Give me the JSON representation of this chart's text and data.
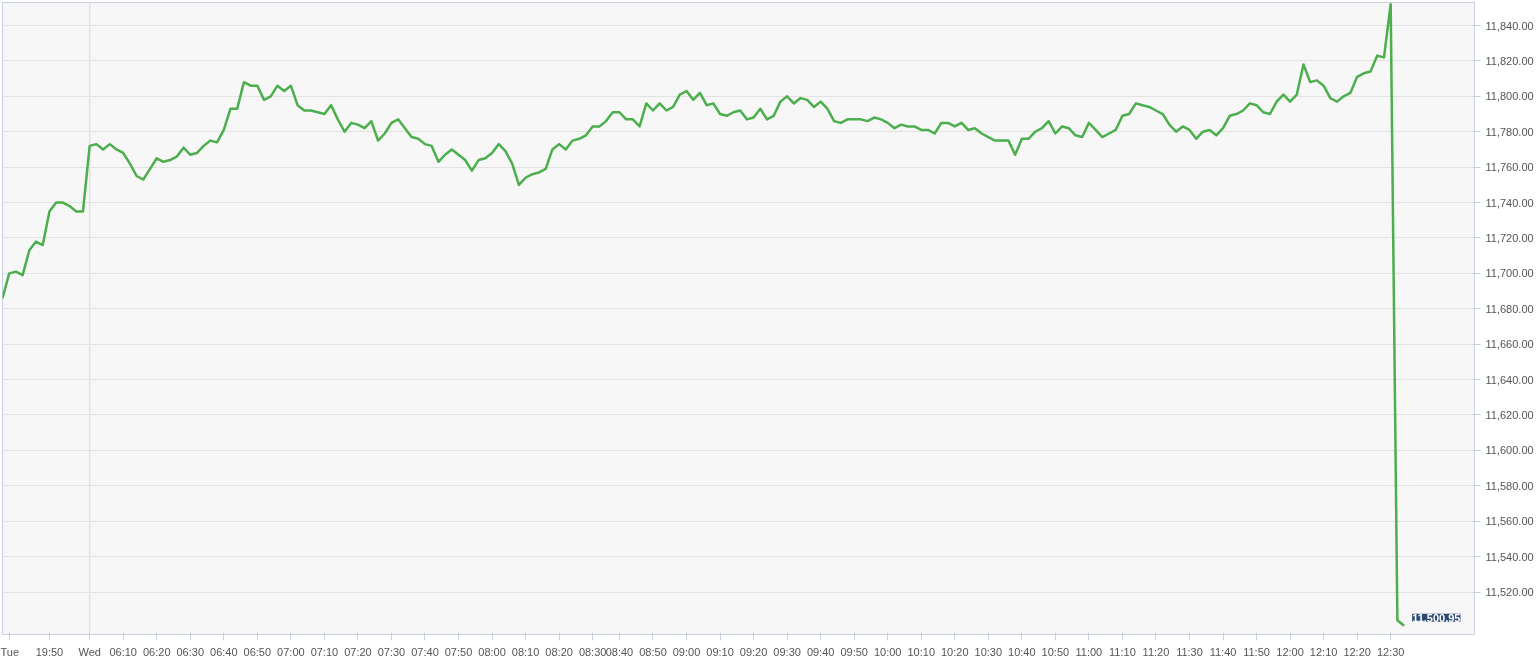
{
  "chart_data": {
    "type": "line",
    "categories": [
      null,
      "Tue",
      null,
      null,
      null,
      null,
      null,
      "19:50",
      null,
      null,
      null,
      null,
      null,
      "Wed",
      null,
      null,
      null,
      null,
      "06:10",
      null,
      null,
      null,
      null,
      "06:20",
      null,
      null,
      null,
      null,
      "06:30",
      null,
      null,
      null,
      null,
      "06:40",
      null,
      null,
      null,
      null,
      "06:50",
      null,
      null,
      null,
      null,
      "07:00",
      null,
      null,
      null,
      null,
      "07:10",
      null,
      null,
      null,
      null,
      "07:20",
      null,
      null,
      null,
      null,
      "07:30",
      null,
      null,
      null,
      null,
      "07:40",
      null,
      null,
      null,
      null,
      "07:50",
      null,
      null,
      null,
      null,
      "08:00",
      null,
      null,
      null,
      null,
      "08:10",
      null,
      null,
      null,
      null,
      "08:20",
      null,
      null,
      null,
      null,
      "08:30",
      null,
      null,
      null,
      "08:40",
      null,
      null,
      null,
      null,
      "08:50",
      null,
      null,
      null,
      null,
      "09:00",
      null,
      null,
      null,
      null,
      "09:10",
      null,
      null,
      null,
      null,
      "09:20",
      null,
      null,
      null,
      null,
      "09:30",
      null,
      null,
      null,
      null,
      "09:40",
      null,
      null,
      null,
      null,
      "09:50",
      null,
      null,
      null,
      null,
      "10:00",
      null,
      null,
      null,
      null,
      "10:10",
      null,
      null,
      null,
      null,
      "10:20",
      null,
      null,
      null,
      null,
      "10:30",
      null,
      null,
      null,
      null,
      "10:40",
      null,
      null,
      null,
      null,
      "10:50",
      null,
      null,
      null,
      null,
      "11:00",
      null,
      null,
      null,
      null,
      "11:10",
      null,
      null,
      null,
      null,
      "11:20",
      null,
      null,
      null,
      null,
      "11:30",
      null,
      null,
      null,
      null,
      "11:40",
      null,
      null,
      null,
      null,
      "11:50",
      null,
      null,
      null,
      null,
      "12:00",
      null,
      null,
      null,
      null,
      "12:10",
      null,
      null,
      null,
      null,
      "12:20",
      null,
      null,
      null,
      null,
      "12:30",
      null,
      null
    ],
    "series": [
      {
        "color": "#4cae4c",
        "values": [
          11686,
          11700,
          11701,
          11699,
          11713,
          11718,
          11716,
          11735,
          11740,
          11740,
          11738,
          11735,
          11735,
          11772,
          11773,
          11770,
          11773,
          11770,
          11768,
          11762,
          11755,
          11753,
          11759,
          11765,
          11763,
          11764,
          11766,
          11771,
          11767,
          11768,
          11772,
          11775,
          11774,
          11781,
          11793,
          11793,
          11808,
          11806,
          11806,
          11798,
          11800,
          11806,
          11803,
          11806,
          11795,
          11792,
          11792,
          11791,
          11790,
          11795,
          11787,
          11780,
          11785,
          11784,
          11782,
          11786,
          11775,
          11779,
          11785,
          11787,
          11782,
          11777,
          11776,
          11773,
          11772,
          11763,
          11767,
          11770,
          11767,
          11764,
          11758,
          11764,
          11765,
          11768,
          11773,
          11769,
          11762,
          11750,
          11754,
          11756,
          11757,
          11759,
          11770,
          11773,
          11770,
          11775,
          11776,
          11778,
          11783,
          11783,
          11786,
          11791,
          11791,
          11787,
          11787,
          11783,
          11796,
          11792,
          11796,
          11792,
          11794,
          11801,
          11803,
          11798,
          11802,
          11795,
          11796,
          11790,
          11789,
          11791,
          11792,
          11787,
          11788,
          11793,
          11787,
          11789,
          11797,
          11800,
          11796,
          11799,
          11798,
          11794,
          11797,
          11793,
          11786,
          11785,
          11787,
          11787,
          11787,
          11786,
          11788,
          11787,
          11785,
          11782,
          11784,
          11783,
          11783,
          11781,
          11781,
          11779,
          11785,
          11785,
          11783,
          11785,
          11781,
          11782,
          11779,
          11777,
          11775,
          11775,
          11775,
          11767,
          11776,
          11776,
          11780,
          11782,
          11786,
          11779,
          11783,
          11782,
          11778,
          11777,
          11785,
          11781,
          11777,
          11779,
          11781,
          11789,
          11790,
          11796,
          11795,
          11794,
          11792,
          11790,
          11784,
          11780,
          11783,
          11781,
          11776,
          11780,
          11781,
          11778,
          11782,
          11789,
          11790,
          11792,
          11796,
          11795,
          11791,
          11790,
          11797,
          11801,
          11797,
          11801,
          11818,
          11808,
          11809,
          11806,
          11799,
          11797,
          11800,
          11802,
          11811,
          11813,
          11814,
          11823,
          11822,
          11852,
          11504,
          11500.95
        ],
        "value_labels": [
          null,
          null,
          null,
          null,
          null,
          null,
          null,
          null,
          null,
          null,
          null,
          null,
          null,
          null,
          null,
          null,
          null,
          null,
          null,
          null,
          null,
          null,
          null,
          null,
          null,
          null,
          null,
          null,
          null,
          null,
          null,
          null,
          null,
          null,
          null,
          null,
          null,
          null,
          null,
          null,
          null,
          null,
          null,
          null,
          null,
          null,
          null,
          null,
          null,
          null,
          null,
          null,
          null,
          null,
          null,
          null,
          null,
          null,
          null,
          null,
          null,
          null,
          null,
          null,
          null,
          null,
          null,
          null,
          null,
          null,
          null,
          null,
          null,
          null,
          null,
          null,
          null,
          null,
          null,
          null,
          null,
          null,
          null,
          null,
          null,
          null,
          null,
          null,
          null,
          null,
          null,
          null,
          null,
          null,
          null,
          null,
          null,
          null,
          null,
          null,
          null,
          null,
          null,
          null,
          null,
          null,
          null,
          null,
          null,
          null,
          null,
          null,
          null,
          null,
          null,
          null,
          null,
          null,
          null,
          null,
          null,
          null,
          null,
          null,
          null,
          null,
          null,
          null,
          null,
          null,
          null,
          null,
          null,
          null,
          null,
          null,
          null,
          null,
          null,
          null,
          null,
          null,
          null,
          null,
          null,
          null,
          null,
          null,
          null,
          null,
          null,
          null,
          null,
          null,
          null,
          null,
          null,
          null,
          null,
          null,
          null,
          null,
          null,
          null,
          null,
          null,
          null,
          null,
          null,
          null,
          null,
          null,
          null,
          null,
          null,
          null,
          null,
          null,
          null,
          null,
          null,
          null,
          null,
          null,
          null,
          null,
          null,
          null,
          null,
          null,
          null,
          null,
          null,
          null,
          null,
          null,
          null,
          null,
          null,
          null,
          null,
          null,
          null,
          null,
          null,
          null,
          null,
          null,
          null,
          "11,500.95"
        ]
      }
    ],
    "ylim": [
      11496,
      11853
    ],
    "yticks": [
      {
        "value": 11520,
        "label": "11,520.00"
      },
      {
        "value": 11540,
        "label": "11,540.00"
      },
      {
        "value": 11560,
        "label": "11,560.00"
      },
      {
        "value": 11580,
        "label": "11,580.00"
      },
      {
        "value": 11600,
        "label": "11,600.00"
      },
      {
        "value": 11620,
        "label": "11,620.00"
      },
      {
        "value": 11640,
        "label": "11,640.00"
      },
      {
        "value": 11660,
        "label": "11,660.00"
      },
      {
        "value": 11680,
        "label": "11,680.00"
      },
      {
        "value": 11700,
        "label": "11,700.00"
      },
      {
        "value": 11720,
        "label": "11,720.00"
      },
      {
        "value": 11740,
        "label": "11,740.00"
      },
      {
        "value": 11760,
        "label": "11,760.00"
      },
      {
        "value": 11780,
        "label": "11,780.00"
      },
      {
        "value": 11800,
        "label": "11,800.00"
      },
      {
        "value": 11820,
        "label": "11,820.00"
      },
      {
        "value": 11840,
        "label": "11,840.00"
      }
    ],
    "ref_lines": [
      {
        "axis": "x",
        "value": "Wed",
        "color": "#e2e2e2"
      }
    ],
    "grid": "y",
    "marker": "none",
    "line_style": "solid"
  }
}
